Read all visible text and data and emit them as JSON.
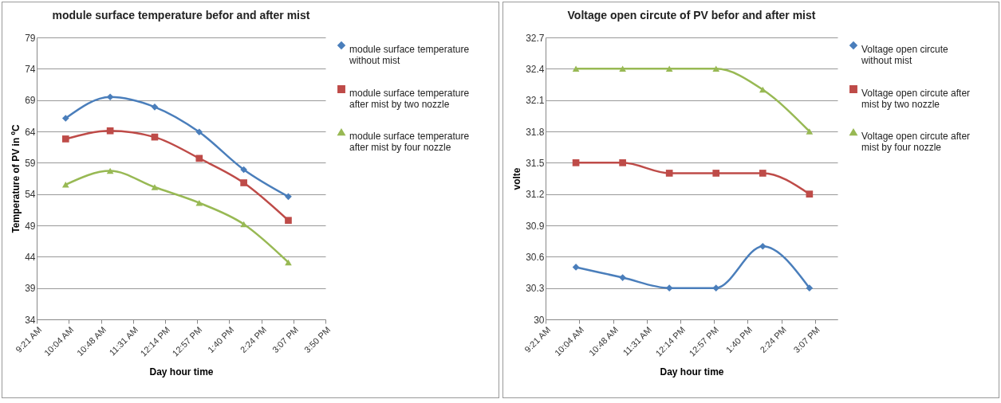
{
  "chart_data": [
    {
      "type": "line",
      "title": "module surface temperature befor and after mist",
      "xlabel": "Day hour time",
      "ylabel": "Temperature of PV in ºC",
      "x": [
        10,
        11,
        12,
        13,
        14,
        15
      ],
      "xlim": [
        9.35,
        15.8333
      ],
      "xticks": [
        {
          "value": 9.35,
          "label": "9:21 AM"
        },
        {
          "value": 10.0667,
          "label": "10:04 AM"
        },
        {
          "value": 10.8,
          "label": "10:48 AM"
        },
        {
          "value": 11.5167,
          "label": "11:31 AM"
        },
        {
          "value": 12.2333,
          "label": "12:14 PM"
        },
        {
          "value": 12.95,
          "label": "12:57 PM"
        },
        {
          "value": 13.6667,
          "label": "1:40 PM"
        },
        {
          "value": 14.4,
          "label": "2:24 PM"
        },
        {
          "value": 15.1167,
          "label": "3:07 PM"
        },
        {
          "value": 15.8333,
          "label": "3:50 PM"
        }
      ],
      "ylim": [
        34,
        79
      ],
      "yticks": [
        34,
        39,
        44,
        49,
        54,
        59,
        64,
        69,
        74,
        79
      ],
      "grid": "y",
      "legend": "right",
      "series": [
        {
          "name": "module surface temperature without mist",
          "color": "#4a7ebb",
          "marker": "diamond",
          "values": [
            66.1,
            69.5,
            67.9,
            63.9,
            57.9,
            53.6
          ]
        },
        {
          "name": "module surface temperature after mist by two nozzle",
          "color": "#be4b48",
          "marker": "square",
          "values": [
            62.8,
            64.1,
            63.1,
            59.7,
            55.8,
            49.8
          ]
        },
        {
          "name": "module surface temperature after mist by four nozzle",
          "color": "#98b954",
          "marker": "triangle",
          "values": [
            55.5,
            57.7,
            55.1,
            52.6,
            49.2,
            43.1
          ]
        }
      ]
    },
    {
      "type": "line",
      "title": "Voltage open circute of PV befor and after mist",
      "xlabel": "Day hour time",
      "ylabel": "volte",
      "x": [
        10,
        11,
        12,
        13,
        14,
        15
      ],
      "xlim": [
        9.35,
        15.6
      ],
      "xticks": [
        {
          "value": 9.35,
          "label": "9:21 AM"
        },
        {
          "value": 10.0667,
          "label": "10:04 AM"
        },
        {
          "value": 10.8,
          "label": "10:48 AM"
        },
        {
          "value": 11.5167,
          "label": "11:31 AM"
        },
        {
          "value": 12.2333,
          "label": "12:14 PM"
        },
        {
          "value": 12.95,
          "label": "12:57 PM"
        },
        {
          "value": 13.6667,
          "label": "1:40 PM"
        },
        {
          "value": 14.4,
          "label": "2:24 PM"
        },
        {
          "value": 15.1167,
          "label": "3:07 PM"
        }
      ],
      "ylim": [
        30,
        32.7
      ],
      "yticks": [
        30,
        30.3,
        30.6,
        30.9,
        31.2,
        31.5,
        31.8,
        32.1,
        32.4,
        32.7
      ],
      "grid": "y",
      "legend": "right",
      "series": [
        {
          "name": "Voltage open circute without mist",
          "color": "#4a7ebb",
          "marker": "diamond",
          "values": [
            30.5,
            30.4,
            30.3,
            30.3,
            30.7,
            30.3
          ]
        },
        {
          "name": "Voltage open circute after mist by two nozzle",
          "color": "#be4b48",
          "marker": "square",
          "values": [
            31.5,
            31.5,
            31.4,
            31.4,
            31.4,
            31.2
          ]
        },
        {
          "name": "Voltage open circute after mist by four nozzle",
          "color": "#98b954",
          "marker": "triangle",
          "values": [
            32.4,
            32.4,
            32.4,
            32.4,
            32.2,
            31.8
          ]
        }
      ]
    }
  ]
}
